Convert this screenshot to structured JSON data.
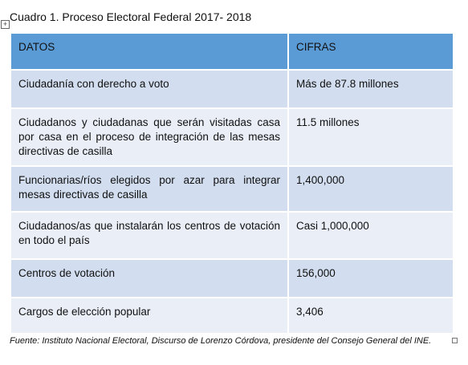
{
  "caption": "Cuadro 1. Proceso Electoral Federal 2017- 2018",
  "table": {
    "header": [
      "DATOS",
      "CIFRAS"
    ],
    "rows": [
      [
        "Ciudadanía con derecho a voto",
        "Más de 87.8 millones"
      ],
      [
        "Ciudadanos y ciudadanas que serán visitadas casa por casa en el proceso de integración de las mesas directivas de casilla",
        "11.5 millones"
      ],
      [
        "Funcionarias/ríos elegidos por azar para integrar mesas directivas de casilla",
        "1,400,000"
      ],
      [
        "Ciudadanos/as que instalarán los centros de votación en todo el país",
        "Casi 1,000,000"
      ],
      [
        "Centros de votación",
        "156,000"
      ],
      [
        "Cargos de elección popular",
        "3,406"
      ]
    ]
  },
  "footnote": "Fuente: Instituto Nacional Electoral, Discurso de Lorenzo Córdova, presidente del Consejo General del INE."
}
